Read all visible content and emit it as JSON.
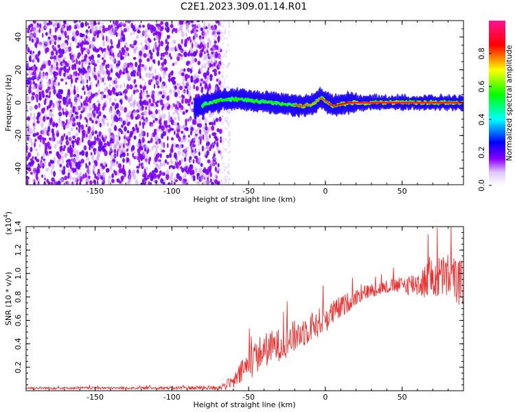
{
  "title": "C2E1.2023.309.01.14.R01",
  "chart_data": [
    {
      "type": "heatmap",
      "name": "spectrogram",
      "xlabel": "Height of straight line (km)",
      "ylabel": "Frequency (Hz)",
      "xlim": [
        -195,
        90
      ],
      "ylim": [
        -50,
        50
      ],
      "xticks": [
        -150,
        -100,
        -50,
        0,
        50
      ],
      "yticks": [
        -40,
        -20,
        0,
        20,
        40
      ],
      "colorbar": {
        "label": "Normalized spectral amplitude",
        "range": [
          0.0,
          1.0
        ],
        "ticks": [
          "0.0",
          "0.2",
          "0.4",
          "0.6",
          "0.8"
        ],
        "colormap": [
          "#ffffff",
          "#e0c6ff",
          "#8b00ff",
          "#0000ff",
          "#00ffff",
          "#00ff00",
          "#ffff00",
          "#ff0000",
          "#ff1493"
        ]
      },
      "noise_region": {
        "x_range": [
          -195,
          -68
        ],
        "description_color": "#7a1cff"
      },
      "signal_track": {
        "x": [
          -85,
          -75,
          -65,
          -55,
          -45,
          -35,
          -25,
          -15,
          -8,
          -3,
          5,
          15,
          25,
          40,
          55,
          70,
          90
        ],
        "y": [
          -3,
          0,
          2,
          2,
          1,
          0,
          -1,
          -2,
          -1,
          3,
          -2,
          0,
          0,
          0,
          0,
          0,
          0
        ],
        "amplitude": [
          0.4,
          0.5,
          0.45,
          0.5,
          0.55,
          0.5,
          0.6,
          0.7,
          0.5,
          0.65,
          0.8,
          0.9,
          0.95,
          0.95,
          0.95,
          0.9,
          0.85
        ]
      }
    },
    {
      "type": "line",
      "name": "snr",
      "xlabel": "Height of straight line (km)",
      "ylabel": "SNR (10 * v/v)",
      "scale_note": "(x10",
      "scale_exp": "4",
      "xlim": [
        -195,
        90
      ],
      "ylim": [
        0,
        1.4
      ],
      "xticks": [
        -150,
        -100,
        -50,
        0,
        50
      ],
      "yticks": [
        "0.2",
        "0.4",
        "0.6",
        "0.8",
        "1.0",
        "1.2",
        "1.4"
      ],
      "color": "#e83030",
      "envelope": {
        "x": [
          -195,
          -120,
          -70,
          -60,
          -55,
          -50,
          -45,
          -40,
          -30,
          -20,
          -10,
          0,
          10,
          20,
          30,
          40,
          50,
          60,
          70,
          80,
          90
        ],
        "base": [
          0.02,
          0.02,
          0.02,
          0.05,
          0.12,
          0.18,
          0.25,
          0.3,
          0.35,
          0.42,
          0.5,
          0.58,
          0.68,
          0.78,
          0.84,
          0.87,
          0.88,
          0.88,
          0.9,
          0.92,
          0.85
        ],
        "spread": [
          0.01,
          0.01,
          0.02,
          0.06,
          0.1,
          0.14,
          0.15,
          0.15,
          0.14,
          0.14,
          0.13,
          0.12,
          0.1,
          0.07,
          0.06,
          0.06,
          0.07,
          0.12,
          0.18,
          0.2,
          0.2
        ]
      }
    }
  ]
}
